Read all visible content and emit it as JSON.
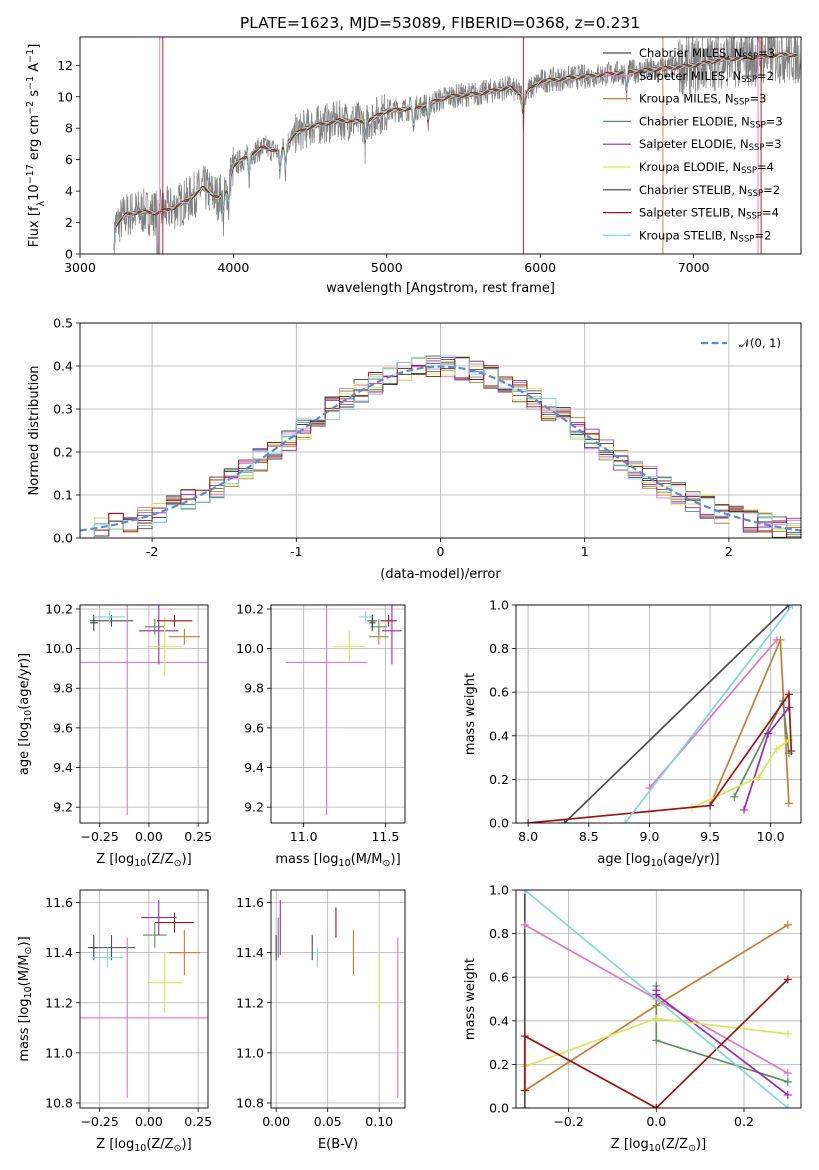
{
  "figure": {
    "title": "PLATE=1623, MJD=53089, FIBERID=0368, z=0.231"
  },
  "colors": {
    "data": "#808080",
    "gauss": "#5b8bd6",
    "series": [
      "#4d4d4d",
      "#e377c2",
      "#c87d36",
      "#5e8f5e",
      "#9b27b4",
      "#d9e85a",
      "#404040",
      "#a01414",
      "#7fd8e0"
    ]
  },
  "chart_data": [
    {
      "id": "spectrum",
      "type": "line",
      "xlabel": "wavelength [Angstrom, rest frame]",
      "ylabel": "Flux [f",
      "ylabel_sub": "λ",
      "ylabel_mid": "10",
      "ylabel_exp1": "−17",
      "ylabel_unit": " erg cm",
      "ylabel_exp2": "−2",
      "ylabel_s": " s",
      "ylabel_exp3": "−1",
      "ylabel_a": " A",
      "ylabel_exp4": "−1",
      "ylabel_end": "]",
      "xlim": [
        3000,
        7700
      ],
      "ylim": [
        0,
        13.8
      ],
      "xticks": [
        3000,
        4000,
        5000,
        6000,
        7000
      ],
      "yticks": [
        0,
        2,
        4,
        6,
        8,
        10,
        12
      ],
      "continuum": [
        [
          3220,
          0
        ],
        [
          3230,
          1.8
        ],
        [
          3300,
          2.5
        ],
        [
          3400,
          2.7
        ],
        [
          3500,
          2.6
        ],
        [
          3600,
          2.9
        ],
        [
          3700,
          3.4
        ],
        [
          3800,
          4.2
        ],
        [
          3900,
          3.6
        ],
        [
          3950,
          3.9
        ],
        [
          4000,
          5.6
        ],
        [
          4100,
          6.3
        ],
        [
          4200,
          6.8
        ],
        [
          4300,
          6.5
        ],
        [
          4400,
          7.6
        ],
        [
          4500,
          8.1
        ],
        [
          4700,
          8.5
        ],
        [
          4860,
          8.4
        ],
        [
          5000,
          9.1
        ],
        [
          5200,
          9.3
        ],
        [
          5400,
          10.0
        ],
        [
          5600,
          10.2
        ],
        [
          5800,
          10.6
        ],
        [
          5890,
          10.1
        ],
        [
          6000,
          11.0
        ],
        [
          6200,
          11.2
        ],
        [
          6500,
          11.5
        ],
        [
          6800,
          11.8
        ],
        [
          7000,
          12.0
        ],
        [
          7200,
          12.4
        ],
        [
          7400,
          12.5
        ],
        [
          7600,
          12.7
        ],
        [
          7700,
          12.6
        ]
      ],
      "legend": [
        {
          "name": "Chabrier MILES, N",
          "sub": "SSP",
          "val": "=3"
        },
        {
          "name": "Salpeter MILES, N",
          "sub": "SSP",
          "val": "=2"
        },
        {
          "name": "Kroupa MILES, N",
          "sub": "SSP",
          "val": "=3"
        },
        {
          "name": "Chabrier ELODIE, N",
          "sub": "SSP",
          "val": "=3"
        },
        {
          "name": "Salpeter ELODIE, N",
          "sub": "SSP",
          "val": "=3"
        },
        {
          "name": "Kroupa ELODIE, N",
          "sub": "SSP",
          "val": "=4"
        },
        {
          "name": "Chabrier STELIB, N",
          "sub": "SSP",
          "val": "=2"
        },
        {
          "name": "Salpeter STELIB, N",
          "sub": "SSP",
          "val": "=4"
        },
        {
          "name": "Kroupa STELIB, N",
          "sub": "SSP",
          "val": "=2"
        }
      ]
    },
    {
      "id": "residuals",
      "type": "bar",
      "xlabel": "(data-model)/error",
      "ylabel": "Normed distribution",
      "xlim": [
        -2.5,
        2.5
      ],
      "ylim": [
        0,
        0.5
      ],
      "xticks": [
        -2,
        -1,
        0,
        1,
        2
      ],
      "yticks": [
        0.0,
        0.1,
        0.2,
        0.3,
        0.4,
        0.5
      ],
      "grid": true,
      "legend": [
        {
          "name": "𝒩(0, 1)",
          "placement": "top-right"
        }
      ],
      "bin_width": 0.1
    },
    {
      "id": "age_vs_Z",
      "type": "scatter",
      "xlabel": "Z [log",
      "xlabel_sub": "10",
      "xlabel_end": "(Z/Z",
      "xlabel_sub2": "⊙",
      "xlabel_close": ")]",
      "ylabel": "age  [log",
      "ylabel_sub": "10",
      "ylabel_end": "(age/yr)]",
      "xlim": [
        -0.35,
        0.3
      ],
      "ylim": [
        9.12,
        10.22
      ],
      "xticks": [
        -0.25,
        0.0,
        0.25
      ],
      "yticks": [
        9.2,
        9.4,
        9.6,
        9.8,
        10.0,
        10.2
      ],
      "points": [
        {
          "s": 0,
          "x": -0.19,
          "y": 10.14,
          "xe": 0.11,
          "ye": 0.03
        },
        {
          "s": 1,
          "x": -0.11,
          "y": 9.93,
          "xe": 0.41,
          "ye": 0.77
        },
        {
          "s": 2,
          "x": 0.18,
          "y": 10.06,
          "xe": 0.08,
          "ye": 0.04
        },
        {
          "s": 3,
          "x": 0.03,
          "y": 10.11,
          "xe": 0.05,
          "ye": 0.04
        },
        {
          "s": 4,
          "x": 0.05,
          "y": 10.09,
          "xe": 0.1,
          "ye": 0.17
        },
        {
          "s": 5,
          "x": 0.08,
          "y": 10.01,
          "xe": 0.09,
          "ye": 0.15
        },
        {
          "s": 6,
          "x": -0.28,
          "y": 10.13,
          "xe": 0.02,
          "ye": 0.04
        },
        {
          "s": 7,
          "x": 0.13,
          "y": 10.14,
          "xe": 0.09,
          "ye": 0.03
        },
        {
          "s": 8,
          "x": -0.2,
          "y": 10.16,
          "xe": 0.08,
          "ye": 0.03
        }
      ]
    },
    {
      "id": "age_vs_mass",
      "type": "scatter",
      "xlabel": "mass [log",
      "xlabel_sub": "10",
      "xlabel_end": "(M/M",
      "xlabel_sub2": "⊙",
      "xlabel_close": ")]",
      "xlim": [
        10.8,
        11.62
      ],
      "ylim": [
        9.12,
        10.22
      ],
      "xticks": [
        11.0,
        11.5
      ],
      "yticks": [
        9.2,
        9.4,
        9.6,
        9.8,
        10.0,
        10.2
      ],
      "points": [
        {
          "s": 0,
          "x": 11.42,
          "y": 10.14,
          "xe": 0.03,
          "ye": 0.03
        },
        {
          "s": 1,
          "x": 11.14,
          "y": 9.93,
          "xe": 0.25,
          "ye": 0.77
        },
        {
          "s": 2,
          "x": 11.46,
          "y": 10.06,
          "xe": 0.06,
          "ye": 0.04
        },
        {
          "s": 3,
          "x": 11.46,
          "y": 10.11,
          "xe": 0.05,
          "ye": 0.04
        },
        {
          "s": 4,
          "x": 11.54,
          "y": 10.09,
          "xe": 0.06,
          "ye": 0.17
        },
        {
          "s": 5,
          "x": 11.28,
          "y": 10.01,
          "xe": 0.1,
          "ye": 0.08
        },
        {
          "s": 6,
          "x": 11.42,
          "y": 10.13,
          "xe": 0.02,
          "ye": 0.04
        },
        {
          "s": 7,
          "x": 11.52,
          "y": 10.14,
          "xe": 0.05,
          "ye": 0.03
        },
        {
          "s": 8,
          "x": 11.38,
          "y": 10.16,
          "xe": 0.04,
          "ye": 0.03
        }
      ]
    },
    {
      "id": "weight_vs_age",
      "type": "line",
      "xlabel": "age  [log",
      "xlabel_sub": "10",
      "xlabel_end": "(age/yr)]",
      "ylabel": "mass weight",
      "xlim": [
        7.9,
        10.25
      ],
      "ylim": [
        0,
        1.0
      ],
      "xticks": [
        8.0,
        8.5,
        9.0,
        9.5,
        10.0
      ],
      "yticks": [
        0.0,
        0.2,
        0.4,
        0.6,
        0.8,
        1.0
      ],
      "grid": true,
      "series": [
        {
          "s": 0,
          "x": [
            8.3,
            10.15
          ],
          "y": [
            0.0,
            1.0
          ]
        },
        {
          "s": 1,
          "x": [
            9.0,
            10.05
          ],
          "y": [
            0.16,
            0.84
          ]
        },
        {
          "s": 2,
          "x": [
            9.5,
            10.08,
            10.15
          ],
          "y": [
            0.08,
            0.84,
            0.09
          ]
        },
        {
          "s": 3,
          "x": [
            9.7,
            10.1,
            10.15
          ],
          "y": [
            0.12,
            0.56,
            0.32
          ]
        },
        {
          "s": 4,
          "x": [
            9.78,
            9.98,
            10.15
          ],
          "y": [
            0.06,
            0.41,
            0.53
          ]
        },
        {
          "s": 5,
          "x": [
            9.35,
            9.9,
            10.05,
            10.15
          ],
          "y": [
            0.07,
            0.21,
            0.34,
            0.38
          ]
        },
        {
          "s": 7,
          "x": [
            8.0,
            9.5,
            10.15,
            10.17
          ],
          "y": [
            0.0,
            0.08,
            0.59,
            0.33
          ]
        },
        {
          "s": 8,
          "x": [
            8.8,
            10.18
          ],
          "y": [
            0.0,
            1.0
          ]
        }
      ]
    },
    {
      "id": "mass_vs_Z",
      "type": "scatter",
      "xlabel": "Z [log",
      "xlabel_sub": "10",
      "xlabel_end": "(Z/Z",
      "xlabel_sub2": "⊙",
      "xlabel_close": ")]",
      "ylabel": "mass [log",
      "ylabel_sub": "10",
      "ylabel_end": "(M/M",
      "ylabel_sub2": "⊙",
      "ylabel_close": ")]",
      "xlim": [
        -0.35,
        0.3
      ],
      "ylim": [
        10.78,
        11.65
      ],
      "xticks": [
        -0.25,
        0.0,
        0.25
      ],
      "yticks": [
        10.8,
        11.0,
        11.2,
        11.4,
        11.6
      ],
      "points": [
        {
          "s": 0,
          "x": -0.19,
          "y": 11.42,
          "xe": 0.12,
          "ye": 0.05
        },
        {
          "s": 1,
          "x": -0.11,
          "y": 11.14,
          "xe": 0.41,
          "ye": 0.32
        },
        {
          "s": 2,
          "x": 0.18,
          "y": 11.4,
          "xe": 0.08,
          "ye": 0.09
        },
        {
          "s": 3,
          "x": 0.03,
          "y": 11.47,
          "xe": 0.06,
          "ye": 0.05
        },
        {
          "s": 4,
          "x": 0.05,
          "y": 11.54,
          "xe": 0.09,
          "ye": 0.07
        },
        {
          "s": 5,
          "x": 0.08,
          "y": 11.28,
          "xe": 0.09,
          "ye": 0.12
        },
        {
          "s": 6,
          "x": -0.28,
          "y": 11.42,
          "xe": 0.02,
          "ye": 0.05
        },
        {
          "s": 7,
          "x": 0.13,
          "y": 11.52,
          "xe": 0.1,
          "ye": 0.04
        },
        {
          "s": 8,
          "x": -0.21,
          "y": 11.38,
          "xe": 0.08,
          "ye": 0.04
        }
      ]
    },
    {
      "id": "mass_vs_ebv",
      "type": "scatter",
      "xlabel": "E(B-V)",
      "xlim": [
        -0.005,
        0.125
      ],
      "ylim": [
        10.78,
        11.65
      ],
      "xticks": [
        0.0,
        0.05,
        0.1
      ],
      "xticklabels": [
        "0.00",
        "0.05",
        "0.10"
      ],
      "yticks": [
        10.8,
        11.0,
        11.2,
        11.4,
        11.6
      ],
      "points": [
        {
          "s": 0,
          "x": 0.035,
          "y": 11.42,
          "ye": 0.05
        },
        {
          "s": 1,
          "x": 0.118,
          "y": 11.14,
          "ye": 0.32
        },
        {
          "s": 2,
          "x": 0.075,
          "y": 11.4,
          "ye": 0.09
        },
        {
          "s": 3,
          "x": 0.002,
          "y": 11.46,
          "ye": 0.08
        },
        {
          "s": 4,
          "x": 0.004,
          "y": 11.5,
          "ye": 0.11
        },
        {
          "s": 5,
          "x": 0.1,
          "y": 11.28,
          "ye": 0.12
        },
        {
          "s": 6,
          "x": 0.0,
          "y": 11.42,
          "ye": 0.05
        },
        {
          "s": 7,
          "x": 0.058,
          "y": 11.52,
          "ye": 0.06
        },
        {
          "s": 8,
          "x": 0.04,
          "y": 11.38,
          "ye": 0.04
        }
      ]
    },
    {
      "id": "weight_vs_Z",
      "type": "line",
      "xlabel": "Z [log",
      "xlabel_sub": "10",
      "xlabel_end": "(Z/Z",
      "xlabel_sub2": "⊙",
      "xlabel_close": ")]",
      "ylabel": "mass weight",
      "xlim": [
        -0.32,
        0.33
      ],
      "ylim": [
        0,
        1.0
      ],
      "xticks": [
        -0.2,
        0.0,
        0.2
      ],
      "xticklabels": [
        "−0.2",
        "0.0",
        "0.2"
      ],
      "yticks": [
        0.0,
        0.2,
        0.4,
        0.6,
        0.8,
        1.0
      ],
      "grid": true,
      "series": [
        {
          "s": 0,
          "x": [
            -0.3,
            -0.3
          ],
          "y": [
            0.0,
            1.0
          ]
        },
        {
          "s": 1,
          "x": [
            -0.3,
            0.0,
            0.3
          ],
          "y": [
            0.84,
            0.5,
            0.16
          ]
        },
        {
          "s": 2,
          "x": [
            -0.3,
            0.0,
            0.3
          ],
          "y": [
            0.08,
            0.47,
            0.84
          ]
        },
        {
          "s": 3,
          "x": [
            0.0,
            0.0,
            0.3
          ],
          "y": [
            0.56,
            0.31,
            0.12
          ]
        },
        {
          "s": 4,
          "x": [
            0.0,
            0.0,
            0.3
          ],
          "y": [
            0.54,
            0.52,
            0.06
          ]
        },
        {
          "s": 5,
          "x": [
            -0.3,
            0.0,
            0.3
          ],
          "y": [
            0.19,
            0.41,
            0.34
          ]
        },
        {
          "s": 7,
          "x": [
            -0.3,
            -0.3,
            0.0,
            0.3
          ],
          "y": [
            0.08,
            0.33,
            0.0,
            0.59
          ]
        },
        {
          "s": 8,
          "x": [
            -0.3,
            0.3
          ],
          "y": [
            1.0,
            0.0
          ]
        }
      ]
    }
  ]
}
